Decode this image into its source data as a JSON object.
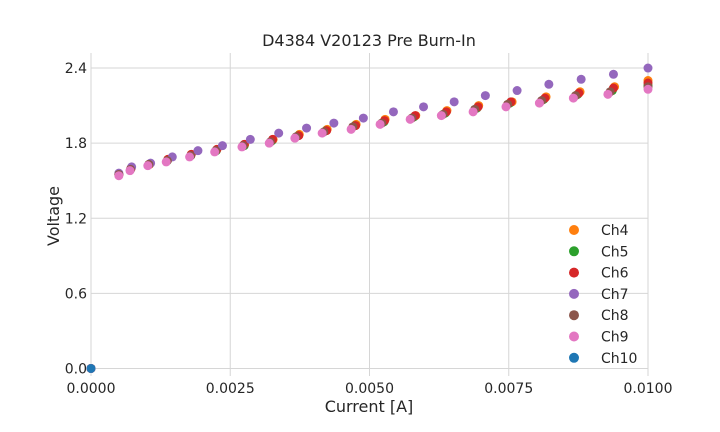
{
  "chart_data": {
    "type": "scatter",
    "title": "D4384 V20123 Pre Burn-In",
    "xlabel": "Current [A]",
    "ylabel": "Voltage",
    "xlim": [
      0,
      0.01
    ],
    "ylim": [
      -0.06,
      2.52
    ],
    "xticks": [
      0,
      0.0025,
      0.005,
      0.0075,
      0.01
    ],
    "xtick_labels": [
      "0.0000",
      "0.0025",
      "0.0050",
      "0.0075",
      "0.0100"
    ],
    "yticks": [
      0,
      0.6,
      1.2,
      1.8,
      2.4
    ],
    "ytick_labels": [
      "0.0",
      "0.6",
      "1.2",
      "1.8",
      "2.4"
    ],
    "grid": true,
    "legend_position": "lower-right",
    "series": [
      {
        "name": "Ch4",
        "color": "#ff7f0e",
        "x": [
          0,
          0.0005,
          0.00072,
          0.00105,
          0.00138,
          0.0018,
          0.00226,
          0.00276,
          0.00327,
          0.00374,
          0.00424,
          0.00476,
          0.00528,
          0.00583,
          0.00639,
          0.00696,
          0.00756,
          0.00817,
          0.00878,
          0.0094,
          0.01
        ],
        "y": [
          0,
          1.55,
          1.6,
          1.63,
          1.67,
          1.71,
          1.75,
          1.79,
          1.83,
          1.87,
          1.91,
          1.95,
          1.99,
          2.02,
          2.06,
          2.1,
          2.13,
          2.17,
          2.21,
          2.25,
          2.3
        ]
      },
      {
        "name": "Ch5",
        "color": "#2ca02c",
        "x": [
          0,
          0.0005,
          0.00071,
          0.00104,
          0.00137,
          0.00179,
          0.00225,
          0.00275,
          0.00325,
          0.00372,
          0.00422,
          0.00474,
          0.00526,
          0.0058,
          0.00636,
          0.00693,
          0.00752,
          0.00813,
          0.00874,
          0.00936,
          0.01
        ],
        "y": [
          0,
          1.55,
          1.59,
          1.63,
          1.66,
          1.7,
          1.74,
          1.78,
          1.82,
          1.86,
          1.9,
          1.94,
          1.97,
          2.01,
          2.04,
          2.08,
          2.12,
          2.15,
          2.19,
          2.22,
          2.26
        ]
      },
      {
        "name": "Ch6",
        "color": "#d62728",
        "x": [
          0,
          0.0005,
          0.00072,
          0.00104,
          0.00138,
          0.0018,
          0.00226,
          0.00275,
          0.00326,
          0.00373,
          0.00423,
          0.00475,
          0.00527,
          0.00582,
          0.00638,
          0.00695,
          0.00754,
          0.00815,
          0.00876,
          0.00938,
          0.01
        ],
        "y": [
          0,
          1.55,
          1.6,
          1.63,
          1.67,
          1.71,
          1.75,
          1.79,
          1.83,
          1.86,
          1.9,
          1.94,
          1.98,
          2.02,
          2.05,
          2.09,
          2.13,
          2.16,
          2.2,
          2.24,
          2.28
        ]
      },
      {
        "name": "Ch7",
        "color": "#9467bd",
        "x": [
          0,
          0.0005,
          0.00073,
          0.00107,
          0.00146,
          0.00192,
          0.00236,
          0.00286,
          0.00337,
          0.00387,
          0.00436,
          0.00489,
          0.00543,
          0.00597,
          0.00652,
          0.00708,
          0.00765,
          0.00822,
          0.0088,
          0.00938,
          0.01
        ],
        "y": [
          0,
          1.56,
          1.61,
          1.64,
          1.69,
          1.74,
          1.78,
          1.83,
          1.88,
          1.92,
          1.96,
          2.0,
          2.05,
          2.09,
          2.13,
          2.18,
          2.22,
          2.27,
          2.31,
          2.35,
          2.4
        ]
      },
      {
        "name": "Ch8",
        "color": "#8c564b",
        "x": [
          0,
          0.0005,
          0.00071,
          0.00104,
          0.00137,
          0.00179,
          0.00224,
          0.00273,
          0.00322,
          0.00368,
          0.00418,
          0.0047,
          0.00522,
          0.00576,
          0.00632,
          0.00689,
          0.00748,
          0.00809,
          0.0087,
          0.00932,
          0.01
        ],
        "y": [
          0,
          1.55,
          1.59,
          1.63,
          1.66,
          1.7,
          1.74,
          1.78,
          1.81,
          1.85,
          1.89,
          1.93,
          1.96,
          2.0,
          2.03,
          2.07,
          2.11,
          2.14,
          2.18,
          2.21,
          2.25
        ]
      },
      {
        "name": "Ch9",
        "color": "#e377c2",
        "x": [
          0,
          0.0005,
          0.0007,
          0.00102,
          0.00135,
          0.00177,
          0.00222,
          0.00271,
          0.0032,
          0.00366,
          0.00415,
          0.00467,
          0.00519,
          0.00573,
          0.00629,
          0.00686,
          0.00745,
          0.00805,
          0.00866,
          0.00928,
          0.01
        ],
        "y": [
          0,
          1.54,
          1.58,
          1.62,
          1.65,
          1.69,
          1.73,
          1.77,
          1.8,
          1.84,
          1.88,
          1.91,
          1.95,
          1.99,
          2.02,
          2.05,
          2.09,
          2.12,
          2.16,
          2.19,
          2.23
        ]
      },
      {
        "name": "Ch10",
        "color": "#1f77b4",
        "x": [
          0
        ],
        "y": [
          0
        ]
      }
    ]
  }
}
